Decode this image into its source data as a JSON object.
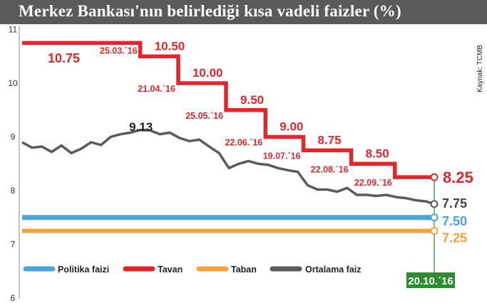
{
  "title": "Merkez Bankası'nın belirlediği kısa vadeli faizler (%)",
  "source": "Kaynak: TCMB",
  "colors": {
    "politika": "#4aa3dd",
    "tavan": "#e3262b",
    "taban": "#f5a23a",
    "ortalama": "#5a5a5a",
    "date_box": "#2e8b2e",
    "title_bg": "#5a5a5a"
  },
  "chart_data": {
    "type": "line",
    "ylim": [
      6,
      11
    ],
    "y_ticks": [
      "6",
      "7",
      "8",
      "9",
      "10",
      "11"
    ],
    "legend": [
      "Politika faizi",
      "Tavan",
      "Taban",
      "Ortalama faiz"
    ],
    "series": [
      {
        "name": "Politika faizi",
        "key": "politika",
        "points": [
          [
            "01.01.16",
            7.5
          ],
          [
            "20.10.16",
            7.5
          ]
        ],
        "end_label": "7.50"
      },
      {
        "name": "Tavan",
        "key": "tavan",
        "points": [
          [
            "01.01.16",
            10.75
          ],
          [
            "25.03.16",
            10.75
          ],
          [
            "25.03.16",
            10.5
          ],
          [
            "21.04.16",
            10.5
          ],
          [
            "21.04.16",
            10.0
          ],
          [
            "25.05.16",
            10.0
          ],
          [
            "25.05.16",
            9.5
          ],
          [
            "22.06.16",
            9.5
          ],
          [
            "22.06.16",
            9.0
          ],
          [
            "19.07.16",
            9.0
          ],
          [
            "19.07.16",
            8.75
          ],
          [
            "22.08.16",
            8.75
          ],
          [
            "22.08.16",
            8.5
          ],
          [
            "22.09.16",
            8.5
          ],
          [
            "22.09.16",
            8.25
          ],
          [
            "20.10.16",
            8.25
          ]
        ],
        "end_label": "8.25"
      },
      {
        "name": "Taban",
        "key": "taban",
        "points": [
          [
            "01.01.16",
            7.25
          ],
          [
            "20.10.16",
            7.25
          ]
        ],
        "end_label": "7.25"
      },
      {
        "name": "Ortalama faiz",
        "key": "ortalama",
        "points": [
          [
            "01.01.16",
            8.9
          ],
          [
            "08.01.16",
            8.8
          ],
          [
            "15.01.16",
            8.82
          ],
          [
            "22.01.16",
            8.72
          ],
          [
            "29.01.16",
            8.84
          ],
          [
            "05.02.16",
            8.7
          ],
          [
            "12.02.16",
            8.78
          ],
          [
            "19.02.16",
            8.9
          ],
          [
            "26.02.16",
            8.85
          ],
          [
            "04.03.16",
            9.0
          ],
          [
            "11.03.16",
            9.05
          ],
          [
            "18.03.16",
            9.08
          ],
          [
            "25.03.16",
            9.13
          ],
          [
            "01.04.16",
            9.12
          ],
          [
            "08.04.16",
            9.05
          ],
          [
            "15.04.16",
            9.08
          ],
          [
            "22.04.16",
            8.98
          ],
          [
            "29.04.16",
            8.92
          ],
          [
            "06.05.16",
            8.95
          ],
          [
            "13.05.16",
            8.82
          ],
          [
            "20.05.16",
            8.7
          ],
          [
            "27.05.16",
            8.42
          ],
          [
            "03.06.16",
            8.5
          ],
          [
            "10.06.16",
            8.55
          ],
          [
            "17.06.16",
            8.5
          ],
          [
            "24.06.16",
            8.48
          ],
          [
            "01.07.16",
            8.42
          ],
          [
            "08.07.16",
            8.38
          ],
          [
            "15.07.16",
            8.35
          ],
          [
            "22.07.16",
            8.1
          ],
          [
            "29.07.16",
            8.02
          ],
          [
            "05.08.16",
            8.02
          ],
          [
            "12.08.16",
            7.98
          ],
          [
            "19.08.16",
            8.05
          ],
          [
            "26.08.16",
            7.92
          ],
          [
            "02.09.16",
            7.92
          ],
          [
            "09.09.16",
            7.9
          ],
          [
            "16.09.16",
            7.92
          ],
          [
            "23.09.16",
            7.88
          ],
          [
            "30.09.16",
            7.86
          ],
          [
            "07.10.16",
            7.82
          ],
          [
            "14.10.16",
            7.8
          ],
          [
            "20.10.16",
            7.75
          ]
        ],
        "end_label": "7.75",
        "peak_label": "9.13",
        "peak_date": "25.03.16"
      }
    ],
    "x_range": [
      "01.01.16",
      "20.10.16"
    ],
    "step_annotations": [
      {
        "date": "25.03.´16",
        "value": "10.50"
      },
      {
        "date": "21.04.´16",
        "value": "10.00"
      },
      {
        "date": "25.05.´16",
        "value": "9.50"
      },
      {
        "date": "22.06.´16",
        "value": "9.00"
      },
      {
        "date": "19.07.´16",
        "value": "8.75"
      },
      {
        "date": "22.08.´16",
        "value": "8.50"
      },
      {
        "date": "22.09.´16",
        "value": ""
      }
    ],
    "start_label": "10.75",
    "end_date_label": "20.10.´16"
  }
}
